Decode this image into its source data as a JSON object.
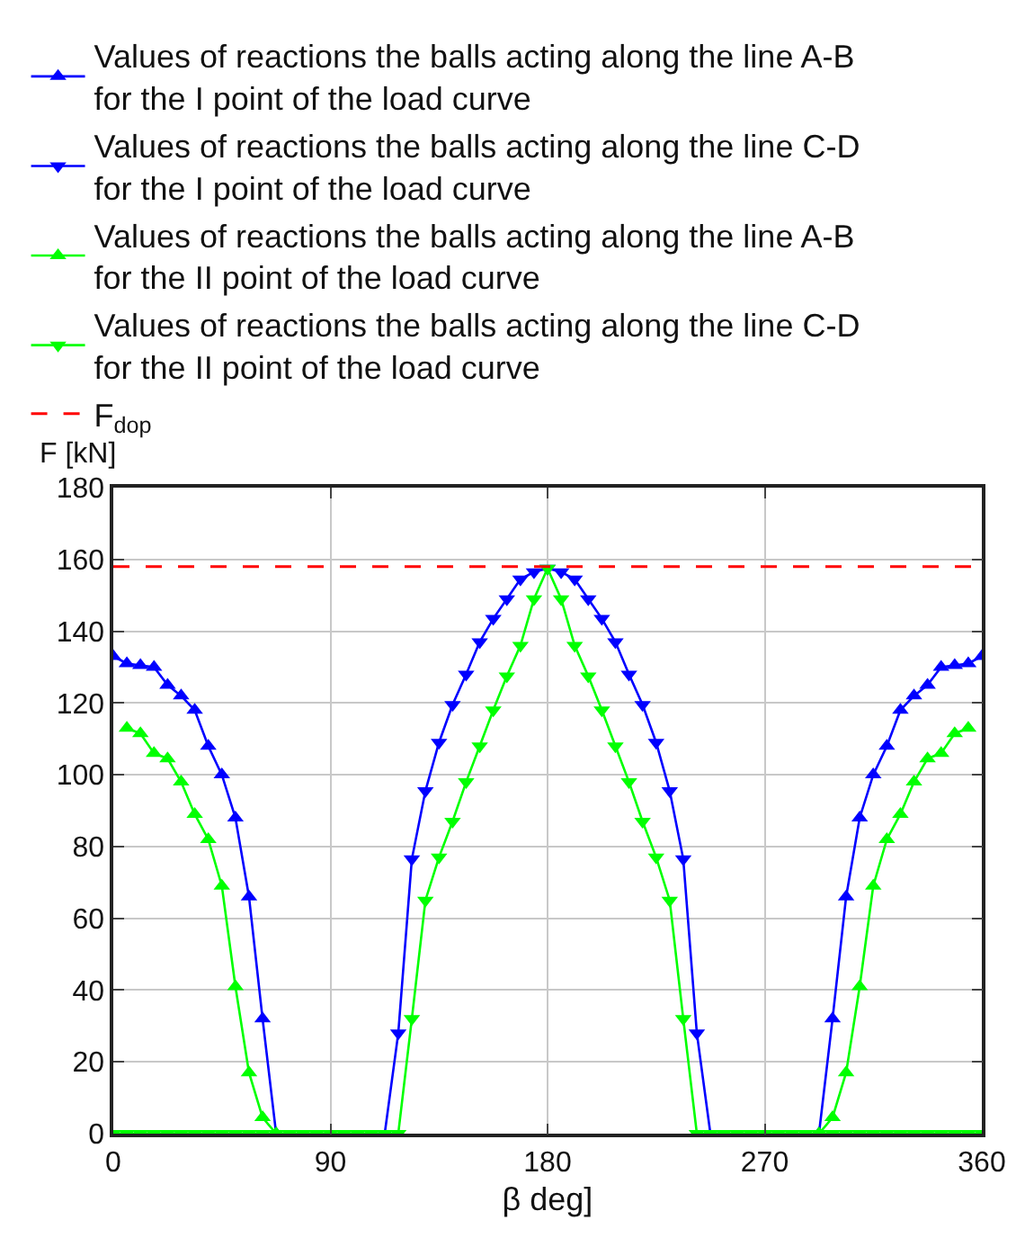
{
  "chart_data": {
    "type": "line",
    "xlabel": "β deg]",
    "ylabel": "F [kN]",
    "x": [
      0,
      5.625,
      11.25,
      16.875,
      22.5,
      28.125,
      33.75,
      39.375,
      45,
      50.625,
      56.25,
      61.875,
      67.5,
      73.125,
      78.75,
      84.375,
      90,
      95.625,
      101.25,
      106.875,
      112.5,
      118.125,
      123.75,
      129.375,
      135,
      140.625,
      146.25,
      151.875,
      157.5,
      163.125,
      168.75,
      174.375,
      180,
      185.625,
      191.25,
      196.875,
      202.5,
      208.125,
      213.75,
      219.375,
      225,
      230.625,
      236.25,
      241.875,
      247.5,
      253.125,
      258.75,
      264.375,
      270,
      275.625,
      281.25,
      286.875,
      292.5,
      298.125,
      303.75,
      309.375,
      315,
      320.625,
      326.25,
      331.875,
      337.5,
      343.125,
      348.75,
      354.375,
      360
    ],
    "series": [
      {
        "name": "Values of reactions the balls acting along the line A-B\nfor the I point of the load curve",
        "color": "#0000ff",
        "marker": "triangle",
        "values": [
          133,
          131,
          130.5,
          130,
          125,
          122,
          118,
          108,
          100,
          88,
          66,
          32,
          0,
          null,
          null,
          null,
          null,
          null,
          null,
          null,
          null,
          null,
          null,
          null,
          null,
          null,
          null,
          null,
          null,
          null,
          null,
          null,
          null,
          null,
          null,
          null,
          null,
          null,
          null,
          null,
          null,
          null,
          null,
          null,
          null,
          null,
          null,
          null,
          null,
          null,
          null,
          null,
          0,
          32,
          66,
          88,
          100,
          108,
          118,
          122,
          125,
          130,
          130.5,
          131,
          133
        ]
      },
      {
        "name": "Values of reactions the balls acting along the line C-D\nfor the I point of the load curve",
        "color": "#0000ff",
        "marker": "triangle-down",
        "values": [
          null,
          null,
          null,
          null,
          null,
          null,
          null,
          null,
          null,
          null,
          null,
          null,
          null,
          null,
          null,
          null,
          null,
          null,
          null,
          null,
          0,
          28,
          76.5,
          95.5,
          109,
          119.5,
          128,
          137,
          143.5,
          149,
          154.5,
          156.5,
          157.5,
          156.5,
          154.5,
          149,
          143.5,
          137,
          128,
          119.5,
          109,
          95.5,
          76.5,
          28,
          0,
          null,
          null,
          null,
          null,
          null,
          null,
          null,
          null,
          null,
          null,
          null,
          null,
          null,
          null,
          null,
          null,
          null,
          null,
          null,
          null
        ]
      },
      {
        "name": "Values of reactions the balls acting along the line A-B\nfor the II point of the load curve",
        "color": "#00ff00",
        "marker": "triangle",
        "values": [
          null,
          113,
          111.5,
          106,
          104.5,
          98,
          89,
          82,
          69,
          41,
          17,
          4.5,
          0,
          null,
          null,
          null,
          null,
          null,
          null,
          null,
          null,
          null,
          null,
          null,
          null,
          null,
          null,
          null,
          null,
          null,
          null,
          null,
          null,
          null,
          null,
          null,
          null,
          null,
          null,
          null,
          null,
          null,
          null,
          null,
          null,
          null,
          null,
          null,
          null,
          null,
          null,
          null,
          0,
          4.5,
          17,
          41,
          69,
          82,
          89,
          98,
          104.5,
          106,
          111.5,
          113,
          null
        ]
      },
      {
        "name": "Values of reactions the balls acting along the line C-D\nfor the II point of the load curve",
        "color": "#00ff00",
        "marker": "triangle-down",
        "values": [
          0,
          0,
          0,
          0,
          0,
          0,
          0,
          0,
          0,
          0,
          0,
          0,
          0,
          0,
          0,
          0,
          0,
          0,
          0,
          0,
          0,
          0,
          32,
          65,
          77,
          87,
          98,
          108,
          118,
          127.5,
          136,
          149,
          157.5,
          149,
          136,
          127.5,
          118,
          108,
          98,
          87,
          77,
          65,
          32,
          0,
          0,
          0,
          0,
          0,
          0,
          0,
          0,
          0,
          0,
          0,
          0,
          0,
          0,
          0,
          0,
          0,
          0,
          0,
          0,
          0,
          0
        ]
      }
    ],
    "ref_lines": [
      {
        "axis": "y",
        "value": 158,
        "label": "F$_{dop}$",
        "color": "#ff0000",
        "line_style": "dashed"
      }
    ],
    "xlim": [
      0,
      360
    ],
    "xticks": [
      0,
      90,
      180,
      270,
      360
    ],
    "ylim": [
      0,
      180
    ],
    "yticks": [
      0,
      20,
      40,
      60,
      80,
      100,
      120,
      140,
      160,
      180
    ],
    "grid": true,
    "legend": "top",
    "line_style": "solid"
  }
}
